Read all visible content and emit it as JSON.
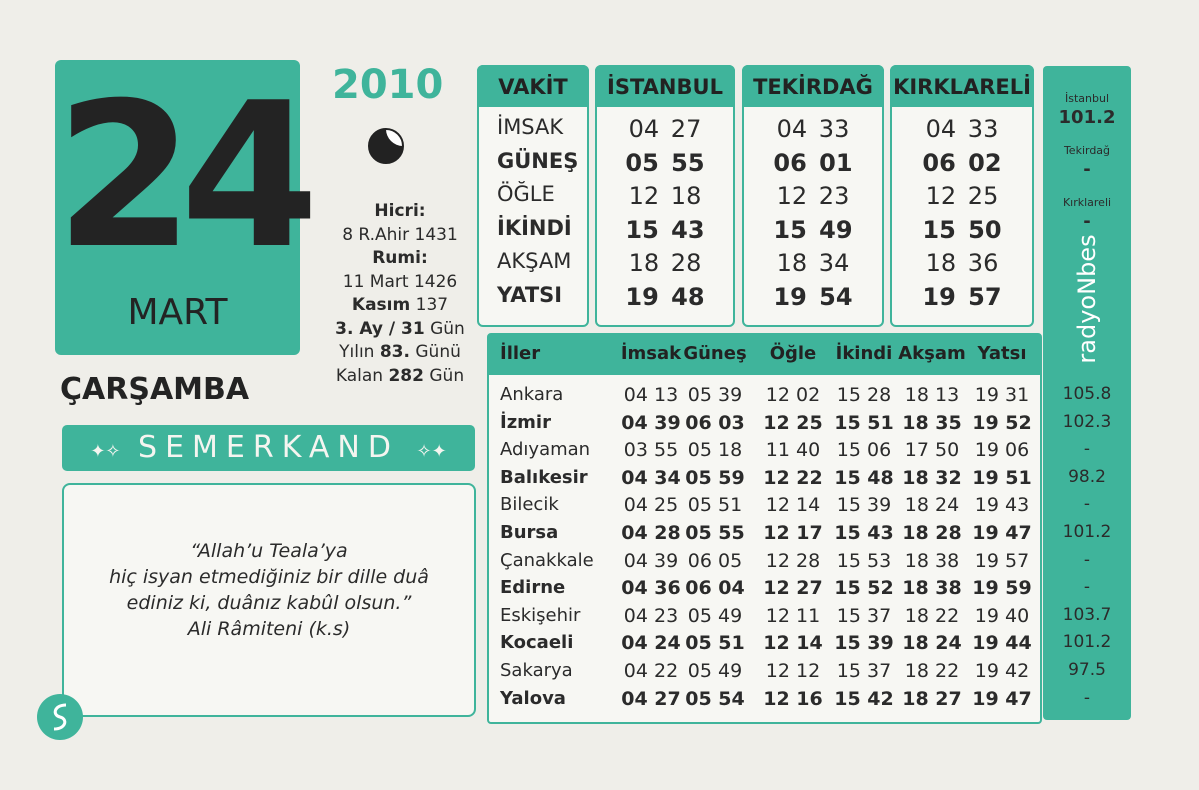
{
  "date": {
    "day": "24",
    "month": "MART",
    "year": "2010",
    "weekday": "ÇARŞAMBA"
  },
  "info": [
    [
      {
        "text": "Hicri:",
        "bold": true
      }
    ],
    [
      {
        "text": "8 R.Ahir 1431",
        "bold": false
      }
    ],
    [
      {
        "text": "Rumi:",
        "bold": true
      }
    ],
    [
      {
        "text": "11 Mart 1426",
        "bold": false
      }
    ],
    [
      {
        "text": "Kasım",
        "bold": true
      },
      {
        "text": "137",
        "bold": false
      }
    ],
    [
      {
        "text": "3. Ay / 31",
        "bold": true
      },
      {
        "text": "Gün",
        "bold": false
      }
    ],
    [
      {
        "text": "Yılın",
        "bold": false
      },
      {
        "text": "83.",
        "bold": true
      },
      {
        "text": "Günü",
        "bold": false
      }
    ],
    [
      {
        "text": "Kalan",
        "bold": false
      },
      {
        "text": "282",
        "bold": true
      },
      {
        "text": "Gün",
        "bold": false
      }
    ]
  ],
  "brand": "SEMERKAND",
  "quote": [
    "“Allah’u Teala’ya",
    "hiç isyan etmediğiniz bir dille duâ",
    "ediniz ki, duânız kabûl olsun.”",
    "Ali Râmiteni (k.s)"
  ],
  "prayer_times": {
    "headers": [
      "VAKİT",
      "İSTANBUL",
      "TEKİRDAĞ",
      "KIRKLARELİ"
    ],
    "rows": [
      {
        "name": "İMSAK",
        "times": [
          "04 27",
          "04 33",
          "04 33"
        ],
        "bold": false
      },
      {
        "name": "GÜNEŞ",
        "times": [
          "05 55",
          "06 01",
          "06 02"
        ],
        "bold": true
      },
      {
        "name": "ÖĞLE",
        "times": [
          "12 18",
          "12 23",
          "12 25"
        ],
        "bold": false
      },
      {
        "name": "İKİNDİ",
        "times": [
          "15 43",
          "15 49",
          "15 50"
        ],
        "bold": true
      },
      {
        "name": "AKŞAM",
        "times": [
          "18 28",
          "18 34",
          "18 36"
        ],
        "bold": false
      },
      {
        "name": "YATSI",
        "times": [
          "19 48",
          "19 54",
          "19 57"
        ],
        "bold": true
      }
    ]
  },
  "cities": {
    "headers": [
      "İller",
      "İmsak",
      "Güneş",
      "Öğle",
      "İkindi",
      "Akşam",
      "Yatsı"
    ],
    "rows": [
      {
        "cells": [
          "Ankara",
          "04 13",
          "05 39",
          "12 02",
          "15 28",
          "18 13",
          "19 31"
        ],
        "bold": false
      },
      {
        "cells": [
          "İzmir",
          "04 39",
          "06 03",
          "12 25",
          "15 51",
          "18 35",
          "19 52"
        ],
        "bold": true
      },
      {
        "cells": [
          "Adıyaman",
          "03 55",
          "05 18",
          "11 40",
          "15 06",
          "17 50",
          "19 06"
        ],
        "bold": false
      },
      {
        "cells": [
          "Balıkesir",
          "04 34",
          "05 59",
          "12 22",
          "15 48",
          "18 32",
          "19 51"
        ],
        "bold": true
      },
      {
        "cells": [
          "Bilecik",
          "04 25",
          "05 51",
          "12 14",
          "15 39",
          "18 24",
          "19 43"
        ],
        "bold": false
      },
      {
        "cells": [
          "Bursa",
          "04 28",
          "05 55",
          "12 17",
          "15 43",
          "18 28",
          "19 47"
        ],
        "bold": true
      },
      {
        "cells": [
          "Çanakkale",
          "04 39",
          "06 05",
          "12 28",
          "15 53",
          "18 38",
          "19 57"
        ],
        "bold": false
      },
      {
        "cells": [
          "Edirne",
          "04 36",
          "06 04",
          "12 27",
          "15 52",
          "18 38",
          "19 59"
        ],
        "bold": true
      },
      {
        "cells": [
          "Eskişehir",
          "04 23",
          "05 49",
          "12 11",
          "15 37",
          "18 22",
          "19 40"
        ],
        "bold": false
      },
      {
        "cells": [
          "Kocaeli",
          "04 24",
          "05 51",
          "12 14",
          "15 39",
          "18 24",
          "19 44"
        ],
        "bold": true
      },
      {
        "cells": [
          "Sakarya",
          "04 22",
          "05 49",
          "12 12",
          "15 37",
          "18 22",
          "19 42"
        ],
        "bold": false
      },
      {
        "cells": [
          "Yalova",
          "04 27",
          "05 54",
          "12 16",
          "15 42",
          "18 27",
          "19 47"
        ],
        "bold": true
      }
    ]
  },
  "radio": {
    "name": "radyoNbes",
    "top": [
      {
        "city": "İstanbul",
        "freq": "101.2"
      },
      {
        "city": "Tekirdağ",
        "freq": "-"
      },
      {
        "city": "Kırklareli",
        "freq": "-"
      }
    ],
    "city_freqs": [
      "105.8",
      "102.3",
      "-",
      "98.2",
      "-",
      "101.2",
      "-",
      "-",
      "103.7",
      "101.2",
      "97.5",
      "-"
    ]
  }
}
